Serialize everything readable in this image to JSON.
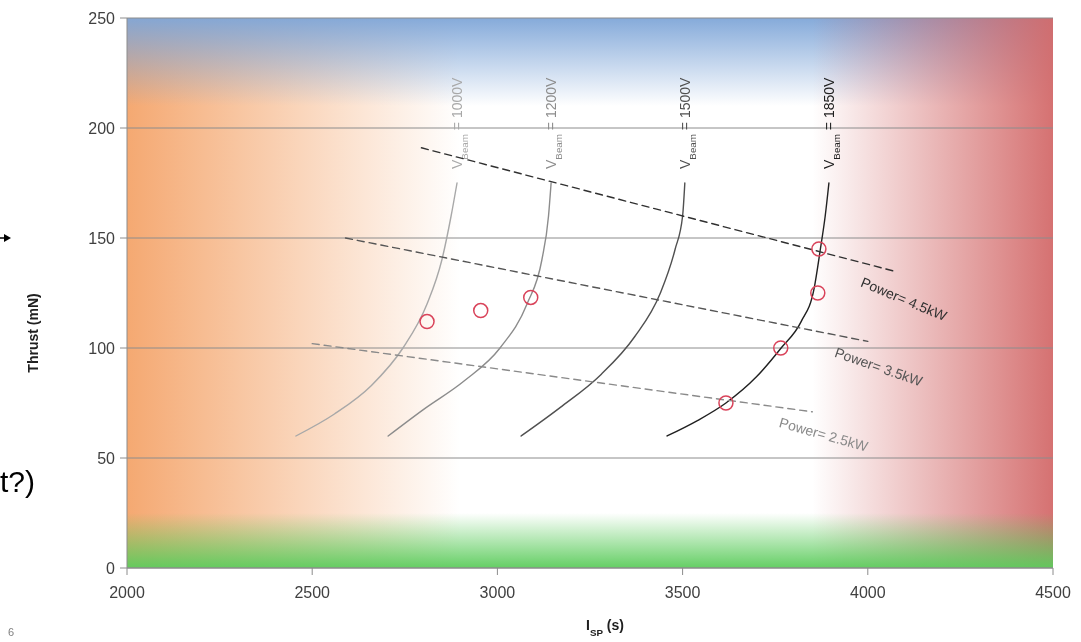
{
  "chart_data": {
    "type": "line",
    "xlabel": "I$_{SP}$ (s)",
    "ylabel": "Thrust (mN)",
    "xlim": [
      2000,
      4500
    ],
    "xticks": [
      2000,
      2500,
      3000,
      3500,
      4000,
      4500
    ],
    "ylim": [
      0,
      250
    ],
    "yticks": [
      0,
      50,
      100,
      150,
      200,
      250
    ],
    "grid": "y",
    "bands": [
      {
        "axis": "x",
        "from": 2000,
        "to": 2900,
        "color": "#f4a46a"
      },
      {
        "axis": "y",
        "from": 210,
        "to": 250,
        "color": "#7fa6d8"
      },
      {
        "axis": "x",
        "from": 3850,
        "to": 4500,
        "color": "#d36a6a"
      },
      {
        "axis": "y",
        "from": 0,
        "to": 25,
        "color": "#5ccc5c"
      }
    ],
    "series": [
      {
        "name": "V$_{Beam}$ = 1000V",
        "type": "line",
        "color": "#a8a8a8",
        "line_style": "solid",
        "x": [
          2456,
          2560,
          2660,
          2745,
          2810,
          2850,
          2875,
          2891
        ],
        "values": [
          60,
          70,
          83,
          100,
          120,
          140,
          160,
          175
        ]
      },
      {
        "name": "V$_{Beam}$ = 1200V",
        "type": "line",
        "color": "#8c8c8c",
        "line_style": "solid",
        "x": [
          2705,
          2800,
          2910,
          3007,
          3080,
          3120,
          3138,
          3145
        ],
        "values": [
          60,
          72,
          85,
          100,
          120,
          140,
          160,
          175
        ]
      },
      {
        "name": "V$_{Beam}$ = 1500V",
        "type": "line",
        "color": "#505050",
        "line_style": "solid",
        "x": [
          3064,
          3170,
          3280,
          3370,
          3440,
          3480,
          3500,
          3506
        ],
        "values": [
          60,
          73,
          88,
          105,
          125,
          145,
          160,
          175
        ]
      },
      {
        "name": "V$_{Beam}$ = 1850V",
        "type": "line",
        "color": "#202020",
        "line_style": "solid",
        "x": [
          3458,
          3540,
          3617,
          3700,
          3766,
          3820,
          3855,
          3872,
          3885,
          3895
        ],
        "values": [
          60,
          67,
          75,
          87,
          100,
          112,
          127,
          145,
          160,
          175
        ]
      },
      {
        "name": "Power= 4.5kW",
        "type": "line",
        "color": "#303030",
        "line_style": "dashed",
        "x": [
          2795,
          4070
        ],
        "values": [
          191,
          135
        ]
      },
      {
        "name": "Power= 3.5kW",
        "type": "line",
        "color": "#555555",
        "line_style": "dashed",
        "x": [
          2590,
          4000
        ],
        "values": [
          150,
          103
        ]
      },
      {
        "name": "Power= 2.5kW",
        "type": "line",
        "color": "#8a8a8a",
        "line_style": "dashed",
        "x": [
          2500,
          3850
        ],
        "values": [
          102,
          71
        ]
      },
      {
        "type": "scatter",
        "color": "#d9435a",
        "marker": "circle",
        "x": [
          2810,
          2955,
          3090,
          3617,
          3765,
          3865,
          3868
        ],
        "values": [
          112,
          117,
          123,
          75,
          100,
          125,
          145
        ]
      }
    ],
    "annotations": [
      "t?)",
      "6"
    ]
  }
}
